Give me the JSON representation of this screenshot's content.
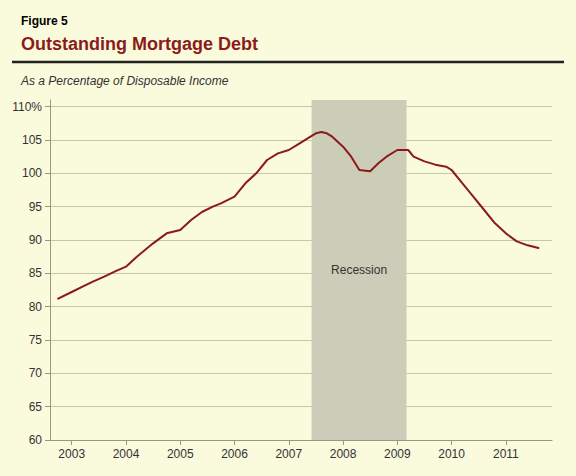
{
  "chart_data": {
    "type": "line",
    "figure_label": "Figure 5",
    "title": "Outstanding Mortgage Debt",
    "subtitle": "As a Percentage of Disposable Income",
    "color": "#8B1A1A",
    "grid": true,
    "recession": {
      "start": 2007.42,
      "end": 2009.17,
      "label": "Recession",
      "color": "#CCCDB8"
    },
    "xlim": [
      2002.6,
      2011.85
    ],
    "xticks": [
      2003,
      2004,
      2005,
      2006,
      2007,
      2008,
      2009,
      2010,
      2011
    ],
    "ylim": [
      60,
      111
    ],
    "yticks": [
      60,
      65,
      70,
      75,
      80,
      85,
      90,
      95,
      100,
      105,
      {
        "value": 110,
        "label": "110%"
      }
    ],
    "x": [
      2002.75,
      2003.0,
      2003.2,
      2003.4,
      2003.6,
      2003.8,
      2004.0,
      2004.2,
      2004.5,
      2004.75,
      2005.0,
      2005.2,
      2005.4,
      2005.6,
      2005.75,
      2006.0,
      2006.2,
      2006.4,
      2006.6,
      2006.8,
      2007.0,
      2007.2,
      2007.4,
      2007.5,
      2007.6,
      2007.7,
      2007.8,
      2008.0,
      2008.15,
      2008.3,
      2008.5,
      2008.65,
      2008.8,
      2009.0,
      2009.2,
      2009.3,
      2009.5,
      2009.7,
      2009.9,
      2010.0,
      2010.2,
      2010.4,
      2010.6,
      2010.8,
      2011.0,
      2011.2,
      2011.4,
      2011.6
    ],
    "values": [
      81.2,
      82.2,
      83.0,
      83.8,
      84.5,
      85.3,
      86.0,
      87.5,
      89.5,
      91.0,
      91.5,
      93.0,
      94.2,
      95.0,
      95.5,
      96.5,
      98.5,
      100.0,
      102.0,
      103.0,
      103.5,
      104.5,
      105.5,
      106.0,
      106.2,
      106.0,
      105.5,
      104.0,
      102.5,
      100.5,
      100.3,
      101.5,
      102.5,
      103.5,
      103.5,
      102.5,
      101.8,
      101.3,
      101.0,
      100.5,
      98.5,
      96.5,
      94.5,
      92.5,
      91.0,
      89.8,
      89.2,
      88.8
    ]
  }
}
